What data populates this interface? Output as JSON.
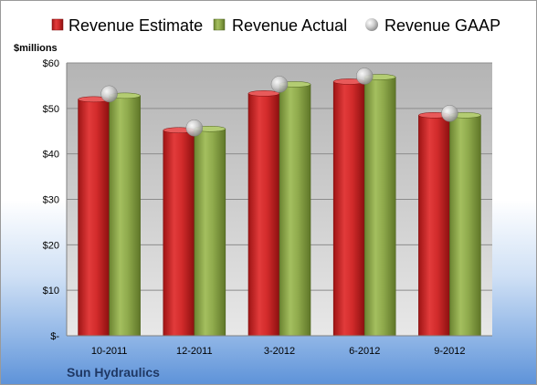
{
  "chart_data": {
    "type": "bar",
    "unit_label": "$millions",
    "company": "Sun Hydraulics",
    "categories": [
      "10-2011",
      "12-2011",
      "3-2012",
      "6-2012",
      "9-2012"
    ],
    "series": [
      {
        "name": "Revenue Estimate",
        "kind": "bar",
        "color": "#d22b2b",
        "values": [
          52.0,
          45.2,
          53.3,
          55.9,
          48.5
        ]
      },
      {
        "name": "Revenue Actual",
        "kind": "bar",
        "color": "#8faa4c",
        "values": [
          52.8,
          45.5,
          55.3,
          56.9,
          48.5
        ]
      },
      {
        "name": "Revenue GAAP",
        "kind": "marker",
        "color": "#c8c8c8",
        "values": [
          53.2,
          45.7,
          55.3,
          57.1,
          48.9
        ]
      }
    ],
    "y_ticks": [
      "$-",
      "$10",
      "$20",
      "$30",
      "$40",
      "$50",
      "$60"
    ],
    "ylim": [
      0,
      60
    ],
    "grid": true,
    "legend_position": "top"
  }
}
